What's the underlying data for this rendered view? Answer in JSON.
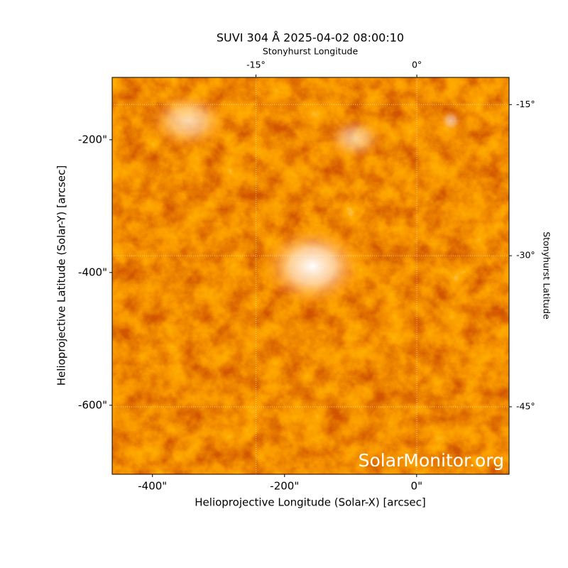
{
  "chart_data": {
    "type": "image",
    "title": "SUVI 304 Å 2025-04-02 08:00:10",
    "x_label": "Helioprojective Longitude (Solar-X) [arcsec]",
    "y_label": "Helioprojective Latitude (Solar-Y) [arcsec]",
    "x2_label": "Stonyhurst Longitude",
    "y2_label": "Stonyhurst Latitude",
    "watermark": "SolarMonitor.org",
    "xlim": [
      -461,
      140
    ],
    "ylim": [
      -704,
      -106
    ],
    "xticks": [
      {
        "value": -400,
        "label": "-400\""
      },
      {
        "value": -200,
        "label": "-200\""
      },
      {
        "value": 0,
        "label": "0\""
      }
    ],
    "yticks": [
      {
        "value": -200,
        "label": "-200\""
      },
      {
        "value": -400,
        "label": "-400\""
      },
      {
        "value": -600,
        "label": "-600\""
      }
    ],
    "x2lim": [
      -28.4,
      8.6
    ],
    "x2ticks": [
      {
        "value": -15,
        "label": "-15°"
      },
      {
        "value": 0,
        "label": "0°"
      }
    ],
    "y2lim": [
      -51.7,
      -12.3
    ],
    "y2ticks": [
      {
        "value": -15,
        "label": "-15°"
      },
      {
        "value": -30,
        "label": "-30°"
      },
      {
        "value": -45,
        "label": "-45°"
      }
    ],
    "grid": true
  }
}
